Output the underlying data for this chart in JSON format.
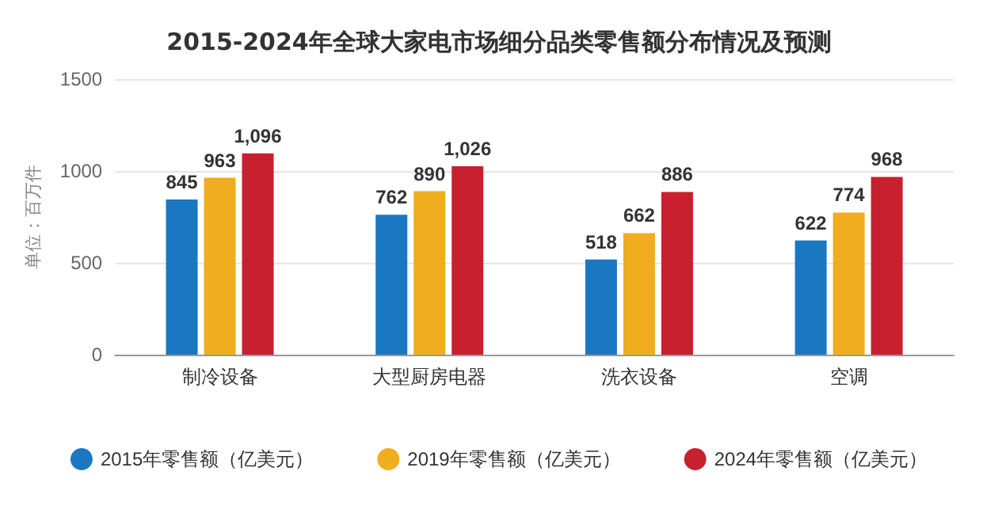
{
  "chart_data": {
    "type": "bar",
    "title": "2015-2024年全球大家电市场细分品类零售额分布情况及预测",
    "ylabel": "单位：百万件",
    "categories": [
      "制冷设备",
      "大型厨房电器",
      "洗衣设备",
      "空调"
    ],
    "series": [
      {
        "name": "2015年零售额（亿美元）",
        "color": "#1a78c2",
        "values": [
          845,
          762,
          518,
          622
        ],
        "value_labels": [
          "845",
          "762",
          "518",
          "622"
        ]
      },
      {
        "name": "2019年零售额（亿美元）",
        "color": "#f0ad1e",
        "values": [
          963,
          890,
          662,
          774
        ],
        "value_labels": [
          "963",
          "890",
          "662",
          "774"
        ]
      },
      {
        "name": "2024年零售额（亿美元）",
        "color": "#c8202f",
        "values": [
          1096,
          1026,
          886,
          968
        ],
        "value_labels": [
          "1,096",
          "1,026",
          "886",
          "968"
        ]
      }
    ],
    "ylim": [
      0,
      1500
    ],
    "yticks": [
      0,
      500,
      1000,
      1500
    ],
    "grid": "y",
    "legend": "bottom"
  }
}
